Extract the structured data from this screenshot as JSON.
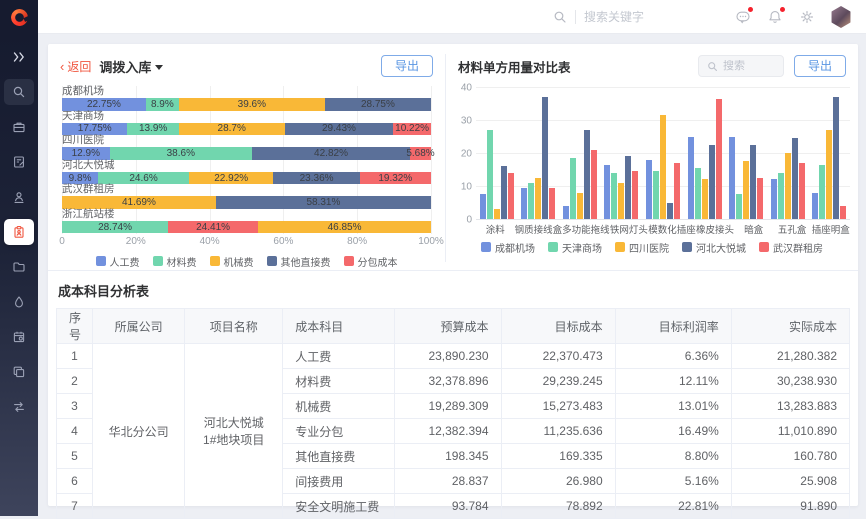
{
  "topbar": {
    "search_placeholder": "搜索关键字",
    "icons": [
      "search-icon",
      "comment-icon",
      "bell-icon",
      "gear-icon",
      "avatar"
    ]
  },
  "sidebar": {
    "icons": [
      "collapse-icon",
      "search-icon",
      "briefcase-icon",
      "document-edit-icon",
      "user-icon",
      "clipboard-icon",
      "folder-icon",
      "drop-icon",
      "calendar-icon",
      "copy-icon",
      "transfer-icon"
    ],
    "active_icon": "clipboard-icon"
  },
  "content": {
    "breadcrumb": {
      "back": "返回",
      "title": "调拨入库"
    },
    "left_panel": {
      "export_label": "导出"
    },
    "right_panel": {
      "title": "材料单方用量对比表",
      "search_placeholder": "搜索",
      "export_label": "导出"
    },
    "table": {
      "title": "成本科目分析表",
      "columns": [
        "序号",
        "所属公司",
        "项目名称",
        "成本科目",
        "预算成本",
        "目标成本",
        "目标利润率",
        "实际成本"
      ],
      "company": "华北分公司",
      "project": "河北大悦城1#地块项目",
      "rows": [
        {
          "no": "1",
          "subject": "人工费",
          "budget": "23,890.230",
          "target": "22,370.473",
          "rate": "6.36%",
          "actual": "21,280.382"
        },
        {
          "no": "2",
          "subject": "材料费",
          "budget": "32,378.896",
          "target": "29,239.245",
          "rate": "12.11%",
          "actual": "30,238.930"
        },
        {
          "no": "3",
          "subject": "机械费",
          "budget": "19,289.309",
          "target": "15,273.483",
          "rate": "13.01%",
          "actual": "13,283.883"
        },
        {
          "no": "4",
          "subject": "专业分包",
          "budget": "12,382.394",
          "target": "11,235.636",
          "rate": "16.49%",
          "actual": "11,010.890"
        },
        {
          "no": "5",
          "subject": "其他直接费",
          "budget": "198.345",
          "target": "169.335",
          "rate": "8.80%",
          "actual": "160.780"
        },
        {
          "no": "6",
          "subject": "间接费用",
          "budget": "28.837",
          "target": "26.980",
          "rate": "5.16%",
          "actual": "25.908"
        },
        {
          "no": "7",
          "subject": "安全文明施工费",
          "budget": "93.784",
          "target": "78.892",
          "rate": "22.81%",
          "actual": "91.890"
        }
      ]
    }
  },
  "colors": {
    "blue": "#7291de",
    "green": "#71d6ae",
    "yellow": "#f9b837",
    "slate": "#5b7099",
    "red": "#f4696b",
    "accent_red": "#f0563f",
    "accent_blue": "#5a96e3"
  },
  "chart_data": [
    {
      "type": "bar",
      "orientation": "horizontal-stacked",
      "unit": "%",
      "legend": [
        "人工费",
        "材料费",
        "机械费",
        "其他直接费",
        "分包成本"
      ],
      "series_colors": {
        "人工费": "#7291de",
        "材料费": "#71d6ae",
        "机械费": "#f9b837",
        "其他直接费": "#5b7099",
        "分包成本": "#f4696b"
      },
      "x_ticks": [
        "0",
        "20%",
        "40%",
        "60%",
        "80%",
        "100%"
      ],
      "xlim": [
        0,
        100
      ],
      "rows": [
        {
          "category": "成都机场",
          "segments": [
            {
              "name": "人工费",
              "value": 22.75,
              "label": "22.75%"
            },
            {
              "name": "材料费",
              "value": 8.9,
              "label": "8.9%"
            },
            {
              "name": "机械费",
              "value": 39.6,
              "label": "39.6%"
            },
            {
              "name": "其他直接费",
              "value": 28.75,
              "label": "28.75%"
            }
          ]
        },
        {
          "category": "天津商场",
          "segments": [
            {
              "name": "人工费",
              "value": 17.75,
              "label": "17.75%"
            },
            {
              "name": "材料费",
              "value": 13.9,
              "label": "13.9%"
            },
            {
              "name": "机械费",
              "value": 28.7,
              "label": "28.7%"
            },
            {
              "name": "其他直接费",
              "value": 29.43,
              "label": "29.43%"
            },
            {
              "name": "分包成本",
              "value": 10.22,
              "label": "10.22%"
            }
          ]
        },
        {
          "category": "四川医院",
          "segments": [
            {
              "name": "人工费",
              "value": 12.9,
              "label": "12.9%"
            },
            {
              "name": "材料费",
              "value": 38.6,
              "label": "38.6%"
            },
            {
              "name": "其他直接费",
              "value": 42.82,
              "label": "42.82%"
            },
            {
              "name": "分包成本",
              "value": 5.68,
              "label": "5.68%"
            }
          ]
        },
        {
          "category": "河北大悦城",
          "segments": [
            {
              "name": "人工费",
              "value": 9.8,
              "label": "9.8%"
            },
            {
              "name": "材料费",
              "value": 24.6,
              "label": "24.6%"
            },
            {
              "name": "机械费",
              "value": 22.92,
              "label": "22.92%"
            },
            {
              "name": "其他直接费",
              "value": 23.36,
              "label": "23.36%"
            },
            {
              "name": "分包成本",
              "value": 19.32,
              "label": "19.32%"
            }
          ]
        },
        {
          "category": "武汉群租房",
          "segments": [
            {
              "name": "机械费",
              "value": 41.69,
              "label": "41.69%"
            },
            {
              "name": "其他直接费",
              "value": 58.31,
              "label": "58.31%"
            }
          ]
        },
        {
          "category": "浙江航站楼",
          "segments": [
            {
              "name": "材料费",
              "value": 28.74,
              "label": "28.74%"
            },
            {
              "name": "分包成本",
              "value": 24.41,
              "label": "24.41%"
            },
            {
              "name": "机械费",
              "value": 46.85,
              "label": "46.85%"
            }
          ]
        }
      ]
    },
    {
      "type": "bar",
      "orientation": "vertical-grouped",
      "title": "材料单方用量对比表",
      "categories": [
        "涂料",
        "钢质接线盒",
        "多功能拖线",
        "铁网灯头",
        "模数化插座",
        "橡皮接头",
        "暗盒",
        "五孔盒",
        "插座明盒"
      ],
      "y_ticks": [
        0,
        10,
        20,
        30,
        40
      ],
      "ylim": [
        0,
        40
      ],
      "series": [
        {
          "name": "成都机场",
          "color": "#7291de",
          "values": [
            7.5,
            9.5,
            4,
            16.5,
            18,
            25,
            25,
            12,
            8
          ]
        },
        {
          "name": "天津商场",
          "color": "#71d6ae",
          "values": [
            27,
            11,
            18.5,
            14,
            14.5,
            15.5,
            7.5,
            14,
            16.5
          ]
        },
        {
          "name": "四川医院",
          "color": "#f9b837",
          "values": [
            3,
            12.5,
            8,
            11,
            31.5,
            12,
            17.5,
            20,
            27
          ]
        },
        {
          "name": "河北大悦城",
          "color": "#5b7099",
          "values": [
            16,
            37,
            27,
            19,
            5,
            22.5,
            22.5,
            24.5,
            37
          ]
        },
        {
          "name": "武汉群租房",
          "color": "#f4696b",
          "values": [
            14,
            9.5,
            21,
            14.5,
            17,
            36.5,
            12.5,
            17,
            4
          ]
        }
      ]
    }
  ]
}
